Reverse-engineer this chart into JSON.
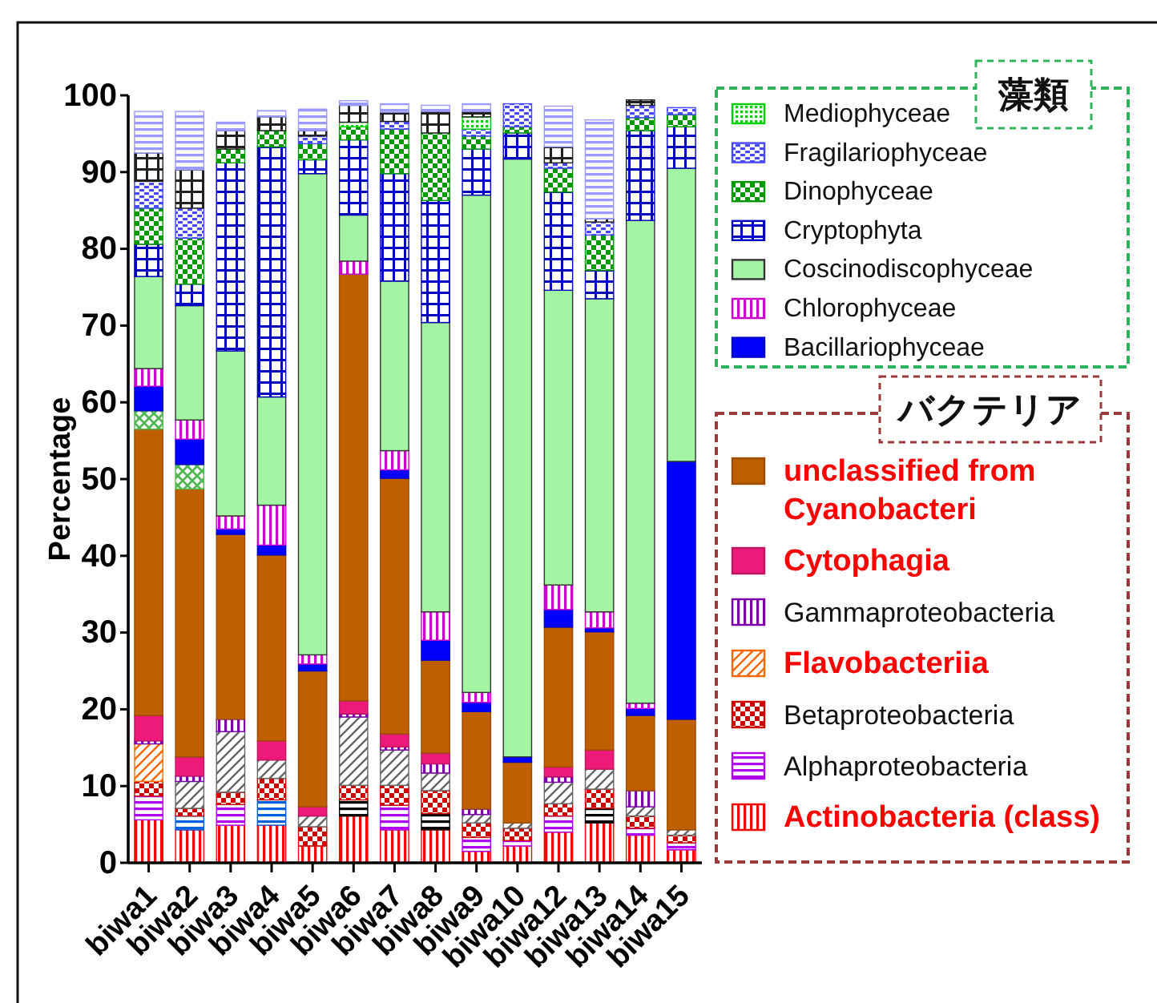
{
  "chart_data": {
    "type": "bar",
    "stacked": true,
    "ylabel": "Percentage",
    "ylim": [
      0,
      100
    ],
    "yticks": [
      0,
      10,
      20,
      30,
      40,
      50,
      60,
      70,
      80,
      90,
      100
    ],
    "legend": "right",
    "annotations": [
      "藻類",
      "バクテリア"
    ],
    "categories": [
      "biwa1",
      "biwa2",
      "biwa3",
      "biwa4",
      "biwa5",
      "biwa6",
      "biwa7",
      "biwa8",
      "biwa9",
      "biwa10",
      "biwa12",
      "biwa13",
      "biwa14",
      "biwa15"
    ],
    "series": [
      {
        "name": "Actinobacteria (class)",
        "color": "#ff0000",
        "values": [
          5.6,
          4.3,
          4.9,
          4.9,
          2.2,
          6.1,
          4.3,
          4.3,
          1.5,
          2.2,
          4.0,
          5.2,
          3.6,
          1.7
        ]
      },
      {
        "name": "Alphaproteobacteria",
        "color": "#b000f0",
        "values": [
          3.1,
          0,
          2.7,
          0,
          0,
          0,
          3.2,
          0,
          1.8,
          0.7,
          2.1,
          0,
          0.9,
          0.9
        ]
      },
      {
        "color": "#0060e0",
        "values": [
          0,
          1.8,
          0,
          3.3,
          0,
          0,
          0,
          0,
          0,
          0,
          0,
          0,
          0,
          0
        ]
      },
      {
        "color": "#000000",
        "values": [
          0,
          0,
          0,
          0,
          0,
          2.1,
          0,
          2.1,
          0,
          0,
          0,
          1.9,
          0,
          0
        ]
      },
      {
        "name": "Betaproteobacteria",
        "color": "#d00000",
        "values": [
          1.9,
          1.0,
          1.6,
          2.8,
          2.5,
          1.9,
          2.6,
          3.0,
          1.9,
          1.6,
          1.6,
          2.5,
          1.6,
          1.0
        ]
      },
      {
        "name": "Flavobacteriia",
        "color": "#ff6600",
        "values": [
          4.9,
          0,
          0,
          0,
          0,
          0,
          0,
          0,
          0,
          0,
          0,
          0,
          0,
          0
        ]
      },
      {
        "color": "#666666",
        "values": [
          0,
          3.5,
          7.9,
          2.4,
          1.4,
          8.9,
          4.6,
          2.3,
          1.1,
          0.7,
          2.8,
          2.6,
          1.2,
          0.7
        ]
      },
      {
        "name": "Gammaproteobacteria",
        "color": "#7a00a8",
        "values": [
          0.4,
          0.7,
          1.6,
          0,
          0,
          0.4,
          0.4,
          1.2,
          0.7,
          0,
          0.7,
          0,
          2.1,
          0
        ]
      },
      {
        "name": "Cytophagia",
        "color": "#ee1a7a",
        "values": [
          3.3,
          2.5,
          0,
          2.5,
          1.2,
          1.7,
          1.7,
          1.4,
          0,
          0,
          1.3,
          2.5,
          0,
          0
        ]
      },
      {
        "name": "unclassified from Cyanobacteri",
        "color": "#c05f00",
        "values": [
          37.3,
          34.9,
          24.1,
          24.2,
          17.7,
          55.6,
          33.3,
          12.1,
          12.7,
          7.9,
          18.2,
          15.4,
          9.8,
          14.4
        ]
      },
      {
        "color": "#50b850",
        "values": [
          2.4,
          3.2,
          0,
          0,
          0,
          0,
          0,
          0,
          0,
          0,
          0,
          0,
          0,
          0
        ]
      },
      {
        "name": "Bacillariophyceae",
        "color": "#0000ff",
        "values": [
          3.2,
          3.3,
          0.7,
          1.3,
          0.9,
          0,
          1.1,
          2.6,
          1.2,
          0.7,
          2.3,
          0.5,
          0.9,
          33.6
        ]
      },
      {
        "name": "Chlorophyceae",
        "color": "#cc00cc",
        "values": [
          2.3,
          2.5,
          1.7,
          5.2,
          1.2,
          1.7,
          2.5,
          3.7,
          1.3,
          0,
          3.2,
          2.1,
          0.7,
          0
        ]
      },
      {
        "name": "Coscinodiscophyceae",
        "color": "#a3f5a3",
        "values": [
          12.0,
          14.9,
          21.5,
          14.1,
          62.7,
          6.0,
          22.1,
          37.7,
          64.8,
          77.9,
          38.4,
          40.8,
          62.9,
          38.2
        ]
      },
      {
        "name": "Cryptophyta",
        "color": "#0000c0",
        "values": [
          4.2,
          2.8,
          24.5,
          32.6,
          1.8,
          9.8,
          14.0,
          15.9,
          6.0,
          3.4,
          12.8,
          3.7,
          11.7,
          5.4
        ]
      },
      {
        "name": "Dinophyceae",
        "color": "#009a00",
        "values": [
          4.7,
          6.0,
          1.8,
          2.1,
          2.1,
          1.7,
          5.8,
          8.8,
          1.7,
          0.8,
          3.1,
          4.6,
          1.7,
          1.6
        ]
      },
      {
        "name": "Fragilariophyceae",
        "color": "#4848ff",
        "values": [
          3.5,
          3.9,
          0,
          0,
          1.0,
          0,
          1.0,
          0,
          0.9,
          3.0,
          0.7,
          1.7,
          1.6,
          0.9
        ]
      },
      {
        "name": "Mediophyceae",
        "color": "#00d000",
        "values": [
          0,
          0,
          0,
          0,
          0,
          0.6,
          0,
          0,
          1.6,
          0,
          0,
          0,
          0,
          0
        ]
      },
      {
        "color": "#202020",
        "values": [
          3.7,
          5.0,
          2.4,
          1.8,
          0.7,
          2.2,
          1.2,
          2.8,
          0.7,
          0,
          2.1,
          0.4,
          0.7,
          0
        ]
      },
      {
        "color": "#9999ff",
        "values": [
          5.4,
          7.6,
          1.1,
          0.8,
          2.8,
          0.6,
          1.1,
          0.8,
          1.0,
          0,
          5.3,
          12.9,
          0,
          0
        ]
      }
    ]
  }
}
